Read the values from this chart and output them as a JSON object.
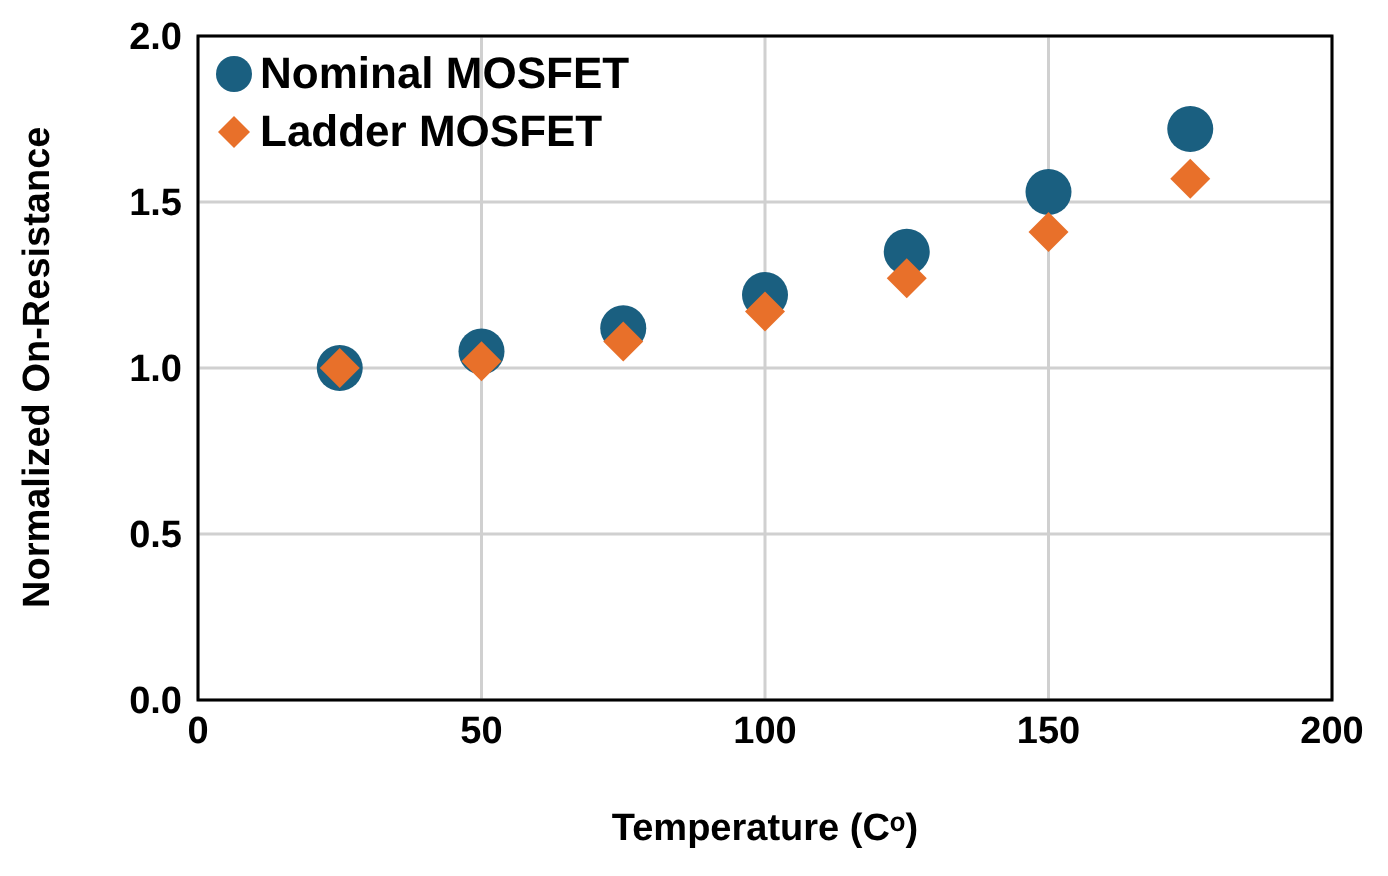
{
  "chart_data": {
    "type": "scatter",
    "xlabel": "Temperature (Cᵒ)",
    "ylabel": "Normalized On-Resistance",
    "x": [
      25,
      50,
      75,
      100,
      125,
      150,
      175
    ],
    "series": [
      {
        "name": "Nominal MOSFET",
        "color": "#1a5f80",
        "marker": "circle",
        "values": [
          1.0,
          1.05,
          1.12,
          1.22,
          1.35,
          1.53,
          1.72
        ]
      },
      {
        "name": "Ladder MOSFET",
        "color": "#e8702a",
        "marker": "diamond",
        "values": [
          1.0,
          1.02,
          1.08,
          1.17,
          1.27,
          1.41,
          1.57
        ]
      }
    ],
    "xlim": [
      0,
      200
    ],
    "xticks": [
      0,
      50,
      100,
      150,
      200
    ],
    "ylim": [
      0,
      2
    ],
    "yticks": [
      {
        "value": 0,
        "label": "0.0"
      },
      {
        "value": 0.5,
        "label": "0.5"
      },
      {
        "value": 1,
        "label": "1.0"
      },
      {
        "value": 1.5,
        "label": "1.5"
      },
      {
        "value": 2,
        "label": "2.0"
      }
    ],
    "grid": true,
    "legend": "top left"
  }
}
